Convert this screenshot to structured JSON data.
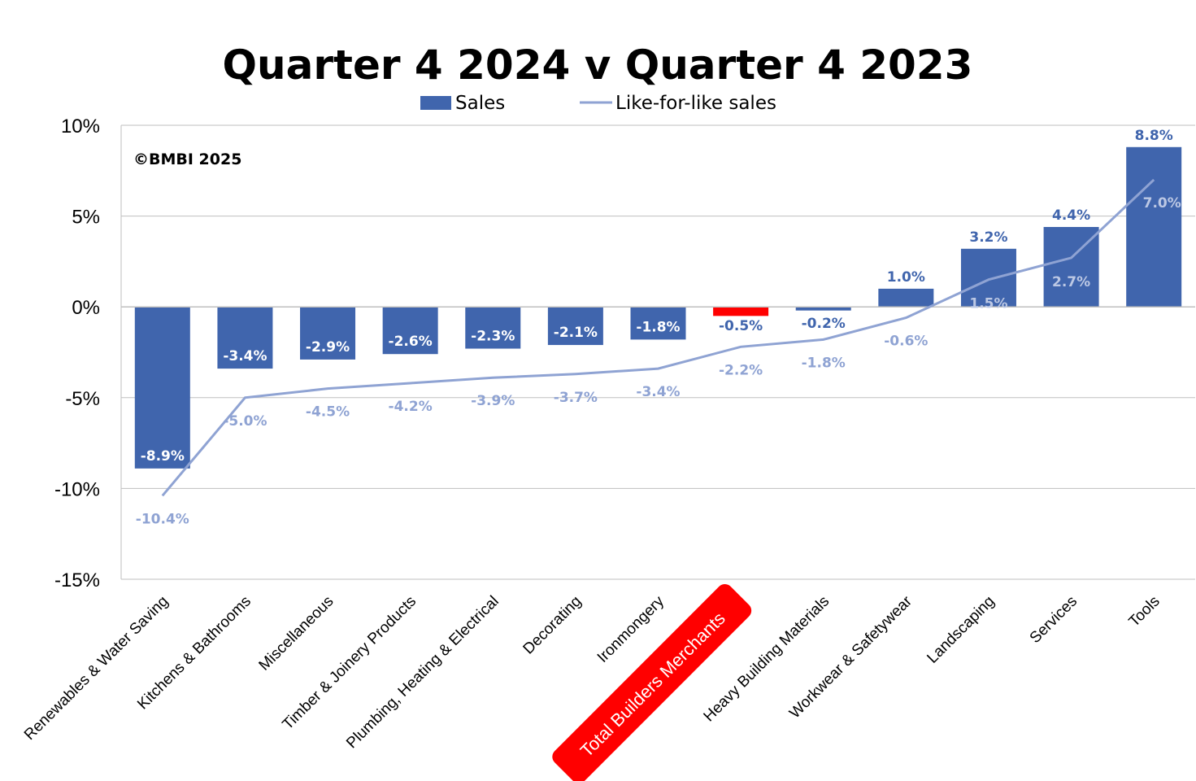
{
  "chart_data": {
    "type": "bar",
    "title": "Quarter 4 2024 v Quarter 4 2023",
    "annotation": "©BMBI 2025",
    "ylim": [
      -15,
      10
    ],
    "yticks": [
      10,
      5,
      0,
      -5,
      -10,
      -15
    ],
    "ytick_labels": [
      "10%",
      "5%",
      "0%",
      "-5%",
      "-10%",
      "-15%"
    ],
    "grid": true,
    "legend_position": "top-center",
    "categories": [
      "Renewables & Water Saving",
      "Kitchens & Bathrooms",
      "Miscellaneous",
      "Timber & Joinery Products",
      "Plumbing, Heating & Electrical",
      "Decorating",
      "Ironmongery",
      "Total Builders Merchants",
      "Heavy Building Materials",
      "Workwear & Safetywear",
      "Landscaping",
      "Services",
      "Tools"
    ],
    "highlight_category": "Total Builders Merchants",
    "series": [
      {
        "name": "Sales",
        "type": "bar",
        "color": "#4065AD",
        "highlight_color": "#FF0000",
        "values": [
          -8.9,
          -3.4,
          -2.9,
          -2.6,
          -2.3,
          -2.1,
          -1.8,
          -0.5,
          -0.2,
          1.0,
          3.2,
          4.4,
          8.8
        ],
        "labels": [
          "-8.9%",
          "-3.4%",
          "-2.9%",
          "-2.6%",
          "-2.3%",
          "-2.1%",
          "-1.8%",
          "-0.5%",
          "-0.2%",
          "1.0%",
          "3.2%",
          "4.4%",
          "8.8%"
        ]
      },
      {
        "name": "Like-for-like sales",
        "type": "line",
        "color": "#8FA3D3",
        "values": [
          -10.4,
          -5.0,
          -4.5,
          -4.2,
          -3.9,
          -3.7,
          -3.4,
          -2.2,
          -1.8,
          -0.6,
          1.5,
          2.7,
          7.0
        ],
        "labels": [
          "-10.4%",
          "-5.0%",
          "-4.5%",
          "-4.2%",
          "-3.9%",
          "-3.7%",
          "-3.4%",
          "-2.2%",
          "-1.8%",
          "-0.6%",
          "1.5%",
          "2.7%",
          "7.0%"
        ]
      }
    ]
  }
}
